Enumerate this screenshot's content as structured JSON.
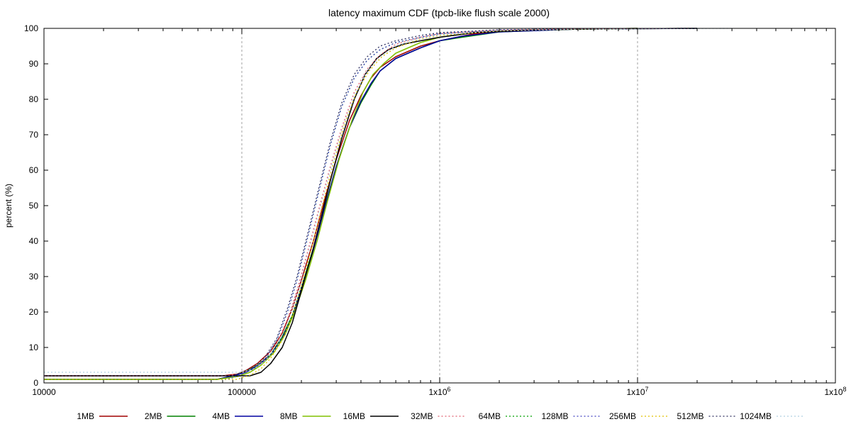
{
  "chart_data": {
    "type": "line",
    "title": "latency maximum CDF (tpcb-like flush scale 2000)",
    "xlabel": "",
    "ylabel": "percent (%)",
    "x_scale": "log",
    "xlim": [
      10000,
      100000000
    ],
    "ylim": [
      0,
      100
    ],
    "grid": {
      "x": true,
      "y": false
    },
    "x_ticks": [
      {
        "value": 10000,
        "label": "10000"
      },
      {
        "value": 100000,
        "label": "100000"
      },
      {
        "value": 1000000,
        "label": "1x10",
        "exp": "6"
      },
      {
        "value": 10000000,
        "label": "1x10",
        "exp": "7"
      },
      {
        "value": 100000000,
        "label": "1x10",
        "exp": "8"
      }
    ],
    "y_ticks": [
      0,
      10,
      20,
      30,
      40,
      50,
      60,
      70,
      80,
      90,
      100
    ],
    "legend_position": "bottom",
    "series": [
      {
        "name": "1MB",
        "color": "#a00000",
        "style": "solid",
        "points": [
          [
            10000,
            2
          ],
          [
            80000,
            2
          ],
          [
            95000,
            2.5
          ],
          [
            105000,
            3.5
          ],
          [
            120000,
            5.5
          ],
          [
            140000,
            9
          ],
          [
            160000,
            14
          ],
          [
            180000,
            21
          ],
          [
            200000,
            29
          ],
          [
            230000,
            40
          ],
          [
            260000,
            51
          ],
          [
            300000,
            63
          ],
          [
            350000,
            74
          ],
          [
            400000,
            81
          ],
          [
            450000,
            86
          ],
          [
            500000,
            89
          ],
          [
            600000,
            92
          ],
          [
            800000,
            95
          ],
          [
            1000000,
            96.5
          ],
          [
            1500000,
            98.5
          ],
          [
            2500000,
            99.5
          ],
          [
            5000000,
            99.8
          ],
          [
            20000000,
            100
          ]
        ]
      },
      {
        "name": "2MB",
        "color": "#008000",
        "style": "solid",
        "points": [
          [
            10000,
            1
          ],
          [
            75000,
            1
          ],
          [
            90000,
            2
          ],
          [
            105000,
            3.2
          ],
          [
            120000,
            5
          ],
          [
            140000,
            8
          ],
          [
            160000,
            13
          ],
          [
            180000,
            19
          ],
          [
            200000,
            27
          ],
          [
            230000,
            38
          ],
          [
            260000,
            49
          ],
          [
            300000,
            61
          ],
          [
            350000,
            72
          ],
          [
            400000,
            79
          ],
          [
            450000,
            84
          ],
          [
            500000,
            88
          ],
          [
            600000,
            91.5
          ],
          [
            800000,
            94.5
          ],
          [
            1000000,
            96.5
          ],
          [
            1300000,
            97.5
          ],
          [
            2000000,
            99
          ],
          [
            5000000,
            99.8
          ],
          [
            20000000,
            100
          ]
        ]
      },
      {
        "name": "4MB",
        "color": "#0000a0",
        "style": "solid",
        "points": [
          [
            10000,
            1
          ],
          [
            75000,
            1
          ],
          [
            90000,
            2
          ],
          [
            105000,
            3
          ],
          [
            120000,
            4.8
          ],
          [
            140000,
            7.8
          ],
          [
            160000,
            12.5
          ],
          [
            180000,
            18.5
          ],
          [
            200000,
            26.5
          ],
          [
            230000,
            37.5
          ],
          [
            260000,
            48.5
          ],
          [
            300000,
            61
          ],
          [
            350000,
            72
          ],
          [
            400000,
            79.5
          ],
          [
            450000,
            84.5
          ],
          [
            500000,
            88
          ],
          [
            600000,
            91.5
          ],
          [
            800000,
            94.5
          ],
          [
            1000000,
            96.5
          ],
          [
            1300000,
            97.8
          ],
          [
            2000000,
            99
          ],
          [
            5000000,
            99.8
          ],
          [
            20000000,
            100
          ]
        ]
      },
      {
        "name": "8MB",
        "color": "#80c000",
        "style": "solid",
        "points": [
          [
            10000,
            1
          ],
          [
            75000,
            1
          ],
          [
            95000,
            1.8
          ],
          [
            110000,
            3
          ],
          [
            125000,
            5
          ],
          [
            145000,
            8.5
          ],
          [
            165000,
            13.5
          ],
          [
            185000,
            20
          ],
          [
            210000,
            29
          ],
          [
            240000,
            40
          ],
          [
            270000,
            51
          ],
          [
            310000,
            63
          ],
          [
            360000,
            74
          ],
          [
            410000,
            82
          ],
          [
            460000,
            87
          ],
          [
            520000,
            90
          ],
          [
            600000,
            93
          ],
          [
            800000,
            96
          ],
          [
            1000000,
            97.5
          ],
          [
            1500000,
            98.8
          ],
          [
            3000000,
            99.6
          ],
          [
            10000000,
            100
          ]
        ]
      },
      {
        "name": "16MB",
        "color": "#000000",
        "style": "solid",
        "points": [
          [
            10000,
            2
          ],
          [
            110000,
            2
          ],
          [
            125000,
            3
          ],
          [
            140000,
            5.5
          ],
          [
            160000,
            10
          ],
          [
            180000,
            17
          ],
          [
            200000,
            26
          ],
          [
            225000,
            36
          ],
          [
            250000,
            46
          ],
          [
            280000,
            57
          ],
          [
            320000,
            69
          ],
          [
            370000,
            80
          ],
          [
            420000,
            87
          ],
          [
            480000,
            91.5
          ],
          [
            550000,
            94
          ],
          [
            650000,
            95.5
          ],
          [
            800000,
            96.5
          ],
          [
            1000000,
            97.5
          ],
          [
            1500000,
            98.8
          ],
          [
            3000000,
            99.6
          ],
          [
            10000000,
            100
          ]
        ]
      },
      {
        "name": "32MB",
        "color": "#e06070",
        "style": "dotted",
        "points": [
          [
            10000,
            2
          ],
          [
            85000,
            2
          ],
          [
            100000,
            2.8
          ],
          [
            115000,
            4
          ],
          [
            130000,
            6.5
          ],
          [
            150000,
            11
          ],
          [
            170000,
            18
          ],
          [
            190000,
            26
          ],
          [
            215000,
            37
          ],
          [
            245000,
            49
          ],
          [
            280000,
            61
          ],
          [
            320000,
            72
          ],
          [
            370000,
            82
          ],
          [
            430000,
            88.5
          ],
          [
            500000,
            92.5
          ],
          [
            600000,
            95.5
          ],
          [
            800000,
            97.5
          ],
          [
            1000000,
            98.5
          ],
          [
            2000000,
            99.5
          ],
          [
            5000000,
            99.9
          ],
          [
            20000000,
            100
          ]
        ]
      },
      {
        "name": "64MB",
        "color": "#00a000",
        "style": "dotted",
        "points": [
          [
            10000,
            1
          ],
          [
            85000,
            1
          ],
          [
            100000,
            2.5
          ],
          [
            115000,
            4
          ],
          [
            130000,
            6.5
          ],
          [
            150000,
            12
          ],
          [
            170000,
            20
          ],
          [
            190000,
            29
          ],
          [
            215000,
            41
          ],
          [
            245000,
            54
          ],
          [
            280000,
            67
          ],
          [
            320000,
            78
          ],
          [
            370000,
            86
          ],
          [
            430000,
            91
          ],
          [
            500000,
            94
          ],
          [
            600000,
            96
          ],
          [
            800000,
            97.5
          ],
          [
            1000000,
            98.5
          ],
          [
            2000000,
            99.5
          ],
          [
            5000000,
            99.9
          ],
          [
            20000000,
            100
          ]
        ]
      },
      {
        "name": "128MB",
        "color": "#4040c0",
        "style": "dotted",
        "points": [
          [
            10000,
            1
          ],
          [
            85000,
            1
          ],
          [
            100000,
            2.5
          ],
          [
            115000,
            4
          ],
          [
            130000,
            6.5
          ],
          [
            150000,
            12
          ],
          [
            170000,
            20
          ],
          [
            190000,
            29
          ],
          [
            215000,
            41
          ],
          [
            245000,
            54
          ],
          [
            280000,
            67
          ],
          [
            320000,
            78
          ],
          [
            370000,
            86
          ],
          [
            430000,
            91
          ],
          [
            500000,
            94
          ],
          [
            600000,
            96
          ],
          [
            800000,
            97.5
          ],
          [
            1000000,
            98.5
          ],
          [
            2000000,
            99.5
          ],
          [
            5000000,
            99.9
          ],
          [
            20000000,
            100
          ]
        ]
      },
      {
        "name": "256MB",
        "color": "#e0c000",
        "style": "dotted",
        "points": [
          [
            10000,
            1
          ],
          [
            95000,
            1
          ],
          [
            110000,
            2.2
          ],
          [
            125000,
            4
          ],
          [
            140000,
            7
          ],
          [
            160000,
            12
          ],
          [
            180000,
            19
          ],
          [
            200000,
            27
          ],
          [
            225000,
            38
          ],
          [
            255000,
            50
          ],
          [
            290000,
            62
          ],
          [
            330000,
            73
          ],
          [
            380000,
            82
          ],
          [
            440000,
            88
          ],
          [
            510000,
            92
          ],
          [
            600000,
            94.5
          ],
          [
            800000,
            97
          ],
          [
            1000000,
            98
          ],
          [
            2000000,
            99.3
          ],
          [
            5000000,
            99.8
          ],
          [
            20000000,
            100
          ]
        ]
      },
      {
        "name": "512MB",
        "color": "#303060",
        "style": "dotted",
        "points": [
          [
            10000,
            2
          ],
          [
            90000,
            2
          ],
          [
            100000,
            3
          ],
          [
            115000,
            4.5
          ],
          [
            130000,
            7
          ],
          [
            150000,
            12.5
          ],
          [
            170000,
            21
          ],
          [
            190000,
            30
          ],
          [
            215000,
            42
          ],
          [
            245000,
            55
          ],
          [
            280000,
            68
          ],
          [
            320000,
            79
          ],
          [
            370000,
            87
          ],
          [
            430000,
            92
          ],
          [
            500000,
            95
          ],
          [
            600000,
            96.5
          ],
          [
            800000,
            98
          ],
          [
            1000000,
            98.8
          ],
          [
            2000000,
            99.6
          ],
          [
            5000000,
            99.9
          ],
          [
            20000000,
            100
          ]
        ]
      },
      {
        "name": "1024MB",
        "color": "#b0d0e0",
        "style": "dotted",
        "points": [
          [
            10000,
            3
          ],
          [
            100000,
            3
          ],
          [
            115000,
            4
          ],
          [
            130000,
            6
          ],
          [
            150000,
            10
          ],
          [
            170000,
            17
          ],
          [
            190000,
            25
          ],
          [
            215000,
            36
          ],
          [
            245000,
            48
          ],
          [
            280000,
            60
          ],
          [
            320000,
            71
          ],
          [
            370000,
            81
          ],
          [
            430000,
            88
          ],
          [
            500000,
            92
          ],
          [
            600000,
            95
          ],
          [
            800000,
            97.2
          ],
          [
            1000000,
            98.2
          ],
          [
            2000000,
            99.4
          ],
          [
            5000000,
            99.8
          ],
          [
            30000000,
            100
          ]
        ]
      }
    ]
  }
}
